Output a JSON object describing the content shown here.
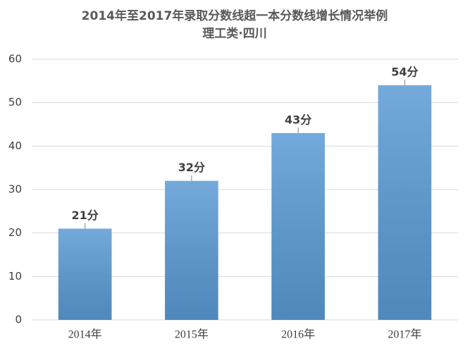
{
  "chart_data": {
    "type": "bar",
    "title": "2014年至2017年录取分数线超一本分数线增长情况举例",
    "subtitle": "理工类·四川",
    "categories": [
      "2014年",
      "2015年",
      "2016年",
      "2017年"
    ],
    "values": [
      21,
      32,
      43,
      54
    ],
    "value_labels": [
      "21分",
      "32分",
      "43分",
      "54分"
    ],
    "color": "#5b9bd5",
    "ylim": [
      0,
      60
    ],
    "yticks": [
      0,
      10,
      20,
      30,
      40,
      50,
      60
    ],
    "grid": true
  }
}
